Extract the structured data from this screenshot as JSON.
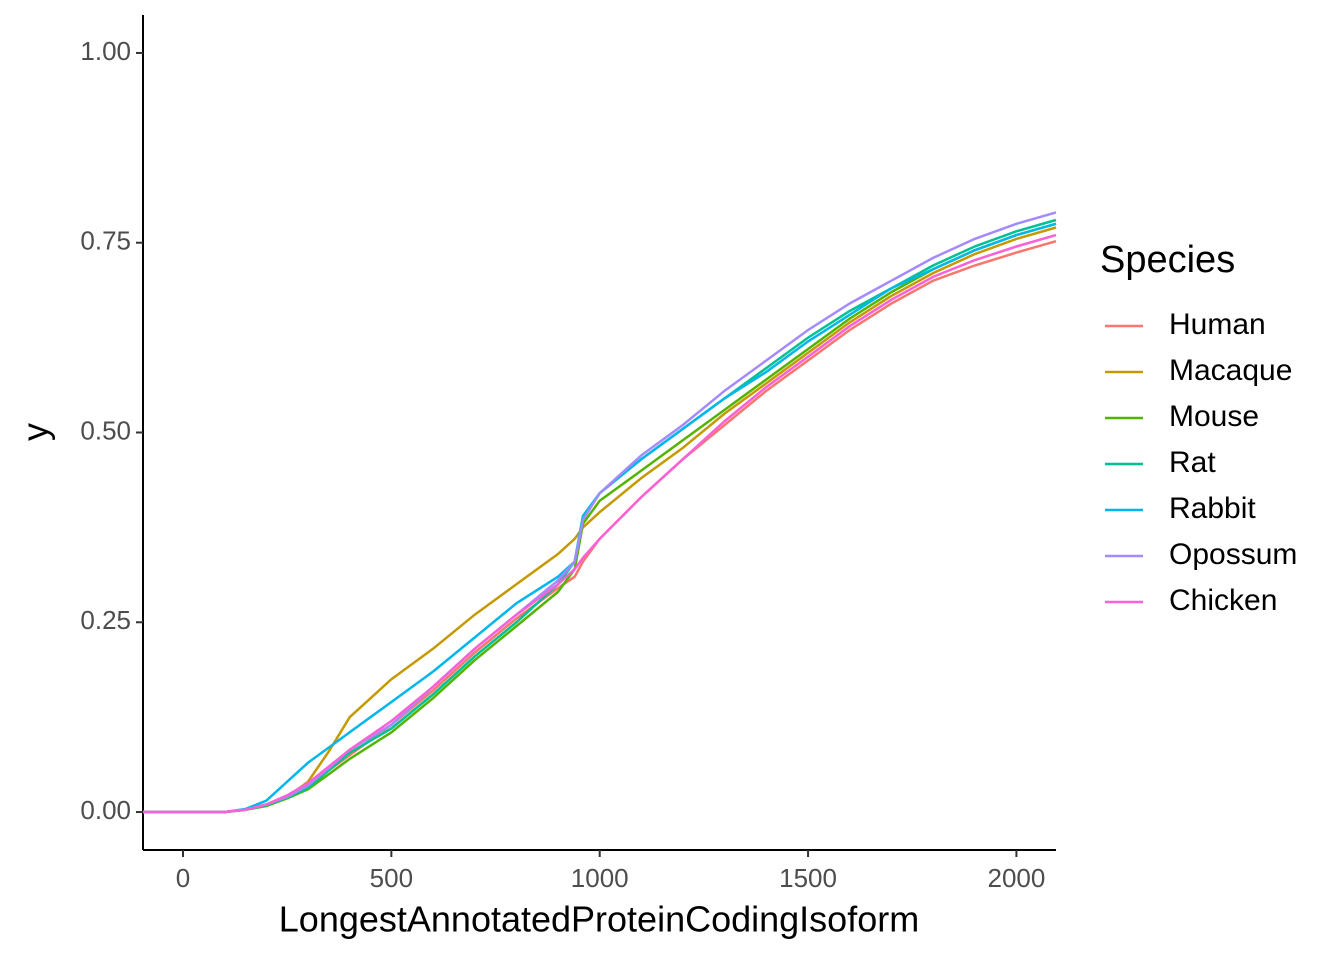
{
  "chart_data": {
    "type": "line",
    "x_label": "LongestAnnotatedProteinCodingIsoform",
    "y_label": "y",
    "legend_title": "Species",
    "x": [
      -96,
      0,
      100,
      150,
      200,
      250,
      300,
      350,
      400,
      500,
      600,
      700,
      800,
      900,
      940,
      960,
      1000,
      1100,
      1200,
      1300,
      1400,
      1500,
      1600,
      1700,
      1800,
      1900,
      2000,
      2095
    ],
    "series": [
      {
        "name": "Human",
        "color": "#F8766D",
        "values": [
          0,
          0,
          0,
          0.003,
          0.01,
          0.02,
          0.035,
          0.055,
          0.075,
          0.115,
          0.16,
          0.21,
          0.255,
          0.295,
          0.31,
          0.33,
          0.36,
          0.415,
          0.465,
          0.51,
          0.555,
          0.595,
          0.635,
          0.67,
          0.7,
          0.72,
          0.737,
          0.752
        ]
      },
      {
        "name": "Macaque",
        "color": "#C49A00",
        "values": [
          0,
          0,
          0,
          0.003,
          0.01,
          0.02,
          0.04,
          0.08,
          0.125,
          0.175,
          0.215,
          0.26,
          0.3,
          0.34,
          0.36,
          0.375,
          0.395,
          0.44,
          0.48,
          0.525,
          0.565,
          0.605,
          0.645,
          0.68,
          0.71,
          0.735,
          0.755,
          0.77
        ]
      },
      {
        "name": "Mouse",
        "color": "#53B400",
        "values": [
          0,
          0,
          0,
          0.003,
          0.008,
          0.018,
          0.03,
          0.05,
          0.07,
          0.105,
          0.15,
          0.2,
          0.245,
          0.29,
          0.32,
          0.38,
          0.41,
          0.45,
          0.49,
          0.53,
          0.57,
          0.61,
          0.65,
          0.685,
          0.715,
          0.74,
          0.76,
          0.775
        ]
      },
      {
        "name": "Rat",
        "color": "#00C094",
        "values": [
          0,
          0,
          0,
          0.003,
          0.009,
          0.019,
          0.032,
          0.055,
          0.078,
          0.11,
          0.155,
          0.205,
          0.25,
          0.3,
          0.33,
          0.39,
          0.42,
          0.465,
          0.505,
          0.545,
          0.585,
          0.625,
          0.66,
          0.69,
          0.72,
          0.745,
          0.765,
          0.78
        ]
      },
      {
        "name": "Rabbit",
        "color": "#00B6EB",
        "values": [
          0,
          0,
          0,
          0.004,
          0.015,
          0.04,
          0.065,
          0.085,
          0.105,
          0.145,
          0.185,
          0.23,
          0.275,
          0.31,
          0.33,
          0.39,
          0.42,
          0.465,
          0.505,
          0.545,
          0.58,
          0.62,
          0.655,
          0.69,
          0.715,
          0.74,
          0.76,
          0.775
        ]
      },
      {
        "name": "Opossum",
        "color": "#A58AFF",
        "values": [
          0,
          0,
          0,
          0.003,
          0.01,
          0.02,
          0.035,
          0.058,
          0.082,
          0.115,
          0.165,
          0.215,
          0.26,
          0.305,
          0.33,
          0.385,
          0.42,
          0.47,
          0.51,
          0.555,
          0.595,
          0.635,
          0.67,
          0.7,
          0.73,
          0.755,
          0.775,
          0.79
        ]
      },
      {
        "name": "Chicken",
        "color": "#FB61D7",
        "values": [
          0,
          0,
          0,
          0.003,
          0.01,
          0.022,
          0.038,
          0.06,
          0.082,
          0.12,
          0.165,
          0.215,
          0.26,
          0.3,
          0.32,
          0.335,
          0.36,
          0.415,
          0.465,
          0.515,
          0.56,
          0.6,
          0.64,
          0.675,
          0.705,
          0.727,
          0.745,
          0.76
        ]
      }
    ],
    "xlim": [
      -96,
      2095
    ],
    "xticks": [
      0,
      500,
      1000,
      1500,
      2000
    ],
    "ylim": [
      -0.05,
      1.05
    ],
    "yticks": [
      {
        "value": 0,
        "label": "0.00"
      },
      {
        "value": 0.25,
        "label": "0.25"
      },
      {
        "value": 0.5,
        "label": "0.50"
      },
      {
        "value": 0.75,
        "label": "0.75"
      },
      {
        "value": 1,
        "label": "1.00"
      }
    ],
    "grid": false,
    "legend": "right"
  }
}
